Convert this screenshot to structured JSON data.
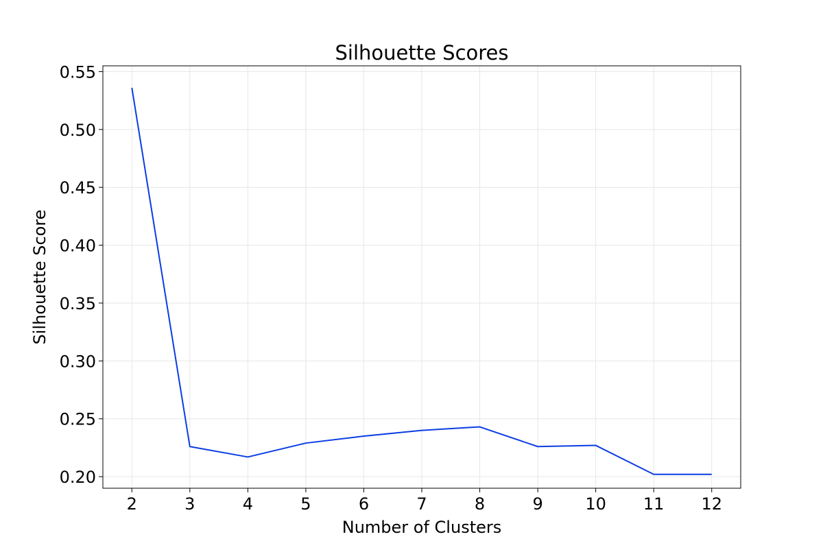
{
  "chart_data": {
    "type": "line",
    "title": "Silhouette Scores",
    "xlabel": "Number of Clusters",
    "ylabel": "Silhouette Score",
    "x": [
      2,
      3,
      4,
      5,
      6,
      7,
      8,
      9,
      10,
      11,
      12
    ],
    "series": [
      {
        "values": [
          0.536,
          0.226,
          0.217,
          0.229,
          0.235,
          0.24,
          0.243,
          0.226,
          0.227,
          0.202,
          0.202
        ]
      }
    ],
    "xticks": [
      2,
      3,
      4,
      5,
      6,
      7,
      8,
      9,
      10,
      11,
      12
    ],
    "yticks": [
      0.2,
      0.25,
      0.3,
      0.35,
      0.4,
      0.45,
      0.5,
      0.55
    ],
    "xlim": [
      1.5,
      12.5
    ],
    "ylim": [
      0.19,
      0.555
    ],
    "grid": true,
    "line_color": "#0a3de3"
  }
}
